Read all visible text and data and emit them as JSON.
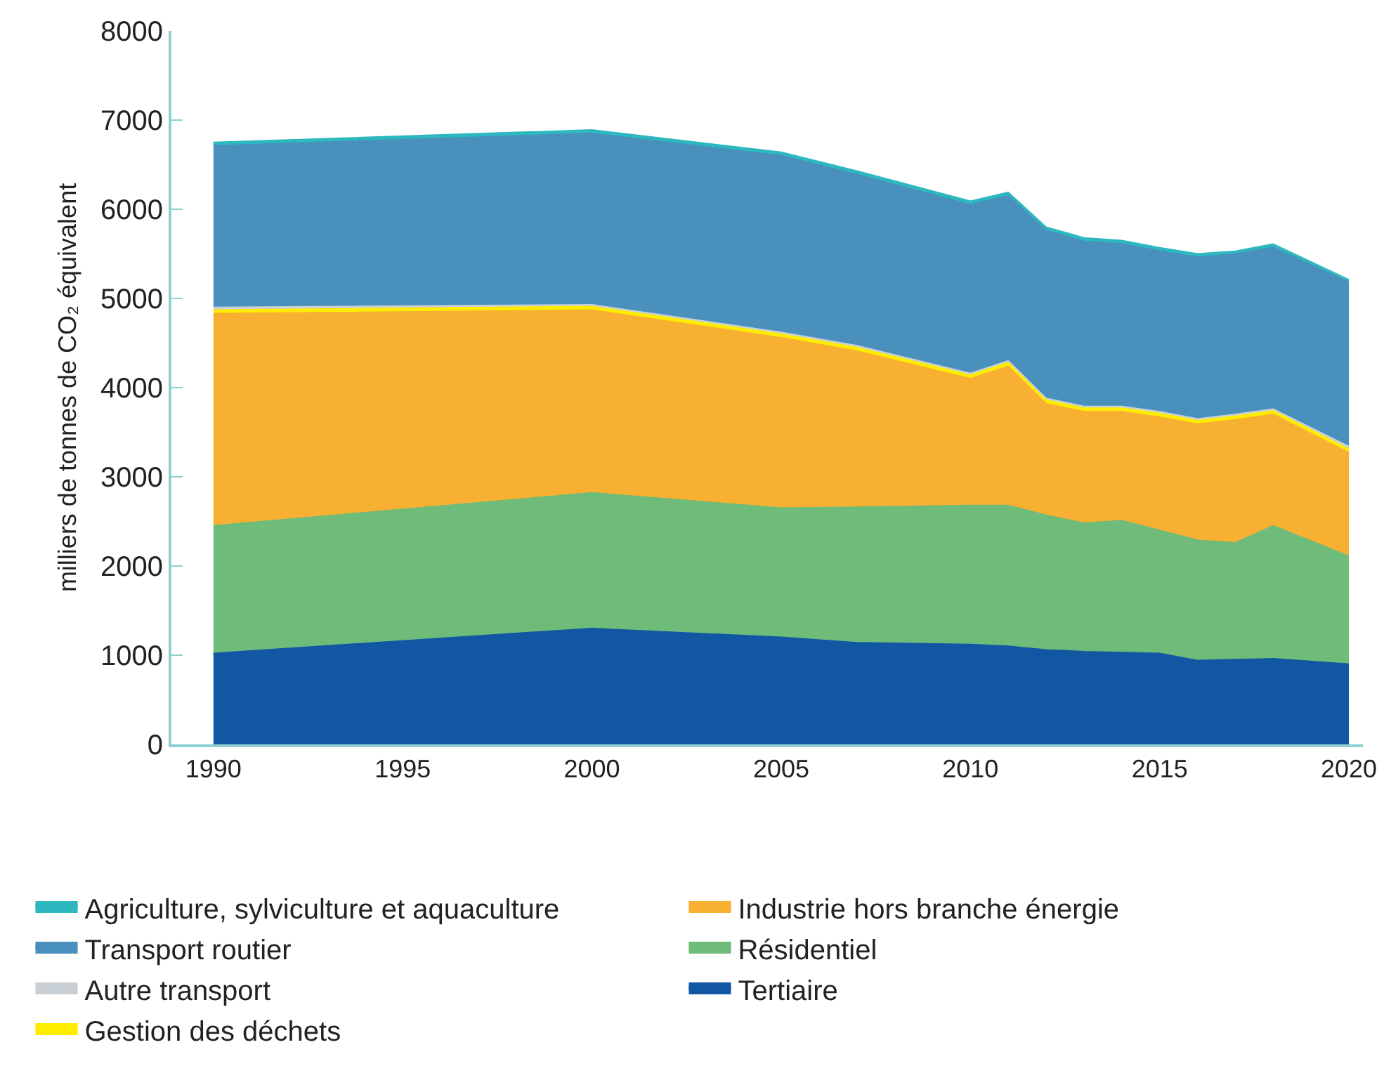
{
  "chart_data": {
    "type": "area",
    "stacked": true,
    "ylabel": "milliers de tonnes de CO₂ équivalent",
    "x": [
      1990,
      2000,
      2005,
      2007,
      2010,
      2011,
      2012,
      2013,
      2014,
      2015,
      2016,
      2017,
      2018,
      2020
    ],
    "xlim": [
      1988.89,
      2020.37
    ],
    "xticks": [
      1990,
      1995,
      2000,
      2005,
      2010,
      2015,
      2020
    ],
    "ylim": [
      0,
      8000
    ],
    "yticks": [
      0,
      1000,
      2000,
      3000,
      4000,
      5000,
      6000,
      7000,
      8000
    ],
    "legend": "bottom",
    "marker": "none",
    "series": [
      {
        "name": "Tertiaire",
        "color": "#1157a3",
        "values": [
          1020,
          1300,
          1200,
          1140,
          1120,
          1100,
          1060,
          1040,
          1030,
          1020,
          940,
          950,
          960,
          900
        ]
      },
      {
        "name": "Résidentiel",
        "color": "#6fbb7a",
        "values": [
          1430,
          1520,
          1450,
          1520,
          1560,
          1580,
          1510,
          1440,
          1480,
          1380,
          1350,
          1310,
          1490,
          1210
        ]
      },
      {
        "name": "Industrie hors branche énergie",
        "color": "#f7b032",
        "values": [
          2380,
          2050,
          1910,
          1750,
          1420,
          1560,
          1250,
          1250,
          1220,
          1270,
          1300,
          1380,
          1250,
          1160
        ]
      },
      {
        "name": "Gestion des déchets",
        "color": "#ffed00",
        "values": [
          40,
          40,
          40,
          40,
          40,
          40,
          40,
          40,
          40,
          40,
          40,
          40,
          40,
          40
        ]
      },
      {
        "name": "Autre transport",
        "color": "#c8d0d6",
        "values": [
          30,
          20,
          20,
          20,
          20,
          20,
          20,
          20,
          20,
          20,
          20,
          20,
          20,
          30
        ]
      },
      {
        "name": "Transport routier",
        "color": "#4a90bc",
        "values": [
          1810,
          1920,
          1980,
          1920,
          1890,
          1850,
          1880,
          1850,
          1820,
          1800,
          1810,
          1800,
          1810,
          1840
        ]
      },
      {
        "name": "Agriculture, sylviculture et aquaculture",
        "color": "#2db8c0",
        "values": [
          40,
          40,
          40,
          40,
          40,
          40,
          40,
          40,
          40,
          40,
          40,
          30,
          40,
          30
        ]
      }
    ]
  }
}
